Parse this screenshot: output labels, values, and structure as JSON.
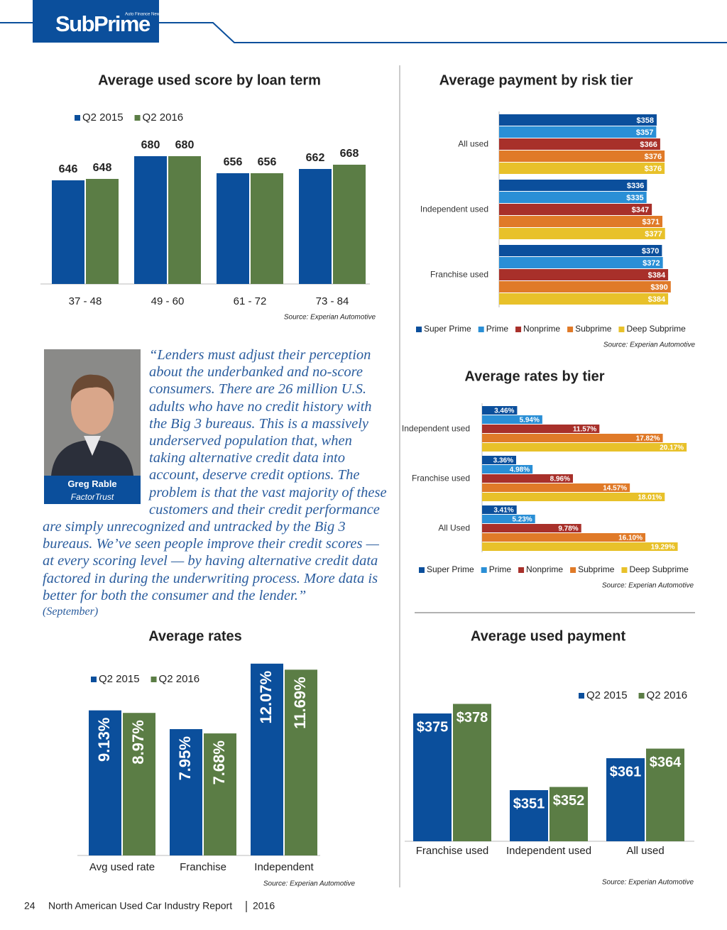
{
  "header": {
    "brand": "SubPrime",
    "tagline": "Auto Finance News"
  },
  "quote": {
    "text": "“Lenders must adjust their perception about the underbanked and no-score consumers. There are 26 million U.S. adults who have no credit history with the Big 3 bureaus. This is a massively underserved population that, when taking alternative credit data into account, deserve credit options. The problem is that the vast majority of these customers and their credit performance are simply unrecognized and untracked by the Big 3 bureaus. We’ve seen people improve their credit scores — at every scoring level — by having alternative credit data factored in during the underwriting process. More data is better for both the consumer and the lender.”",
    "name": "Greg Rable",
    "affiliation": "FactorTrust",
    "date": "(September)"
  },
  "footer": {
    "page": "24",
    "report": "North American Used Car Industry Report",
    "year": "2016"
  },
  "chart_data": [
    {
      "type": "bar",
      "title": "Average used score by loan term",
      "source": "Source: Experian Automotive",
      "legend": "top",
      "categories": [
        "37 - 48",
        "49 - 60",
        "61 - 72",
        "73 - 84"
      ],
      "ylim": [
        500,
        720
      ],
      "series": [
        {
          "name": "Q2 2015",
          "color": "#0b4f9c",
          "values": [
            646,
            680,
            656,
            662
          ]
        },
        {
          "name": "Q2 2016",
          "color": "#5b7d45",
          "values": [
            648,
            680,
            656,
            668
          ]
        }
      ]
    },
    {
      "type": "hbar",
      "title": "Average payment by risk tier",
      "source": "Source: Experian Automotive",
      "legend": "bottom",
      "categories": [
        "All used",
        "Independent used",
        "Franchise used"
      ],
      "xlim": [
        0,
        450
      ],
      "series": [
        {
          "name": "Super Prime",
          "color": "#0b4f9c",
          "values": [
            358,
            336,
            370
          ],
          "value_labels": [
            "$358",
            "$336",
            "$370"
          ]
        },
        {
          "name": "Prime",
          "color": "#2a8fd6",
          "values": [
            357,
            335,
            372
          ],
          "value_labels": [
            "$357",
            "$335",
            "$372"
          ]
        },
        {
          "name": "Nonprime",
          "color": "#a8302a",
          "values": [
            366,
            347,
            384
          ],
          "value_labels": [
            "$366",
            "$347",
            "$384"
          ]
        },
        {
          "name": "Subprime",
          "color": "#e07a28",
          "values": [
            376,
            371,
            390
          ],
          "value_labels": [
            "$376",
            "$371",
            "$390"
          ]
        },
        {
          "name": "Deep Subprime",
          "color": "#e8c12a",
          "values": [
            376,
            377,
            384
          ],
          "value_labels": [
            "$376",
            "$377",
            "$384"
          ]
        }
      ]
    },
    {
      "type": "hbar",
      "title": "Average rates by tier",
      "source": "Source: Experian Automotive",
      "legend": "bottom",
      "categories": [
        "Independent used",
        "Franchise used",
        "All Used"
      ],
      "xlim": [
        0,
        21
      ],
      "series": [
        {
          "name": "Super Prime",
          "color": "#0b4f9c",
          "values": [
            3.46,
            3.36,
            3.41
          ],
          "value_labels": [
            "3.46%",
            "3.36%",
            "3.41%"
          ]
        },
        {
          "name": "Prime",
          "color": "#2a8fd6",
          "values": [
            5.94,
            4.98,
            5.23
          ],
          "value_labels": [
            "5.94%",
            "4.98%",
            "5.23%"
          ]
        },
        {
          "name": "Nonprime",
          "color": "#a8302a",
          "values": [
            11.57,
            8.96,
            9.78
          ],
          "value_labels": [
            "11.57%",
            "8.96%",
            "9.78%"
          ]
        },
        {
          "name": "Subprime",
          "color": "#e07a28",
          "values": [
            17.82,
            14.57,
            16.1
          ],
          "value_labels": [
            "17.82%",
            "14.57%",
            "16.10%"
          ]
        },
        {
          "name": "Deep Subprime",
          "color": "#e8c12a",
          "values": [
            20.17,
            18.01,
            19.29
          ],
          "value_labels": [
            "20.17%",
            "18.01%",
            "19.29%"
          ]
        }
      ]
    },
    {
      "type": "bar",
      "title": "Average rates",
      "source": "Source: Experian Automotive",
      "legend": "top",
      "categories": [
        "Avg used rate",
        "Franchise",
        "Independent"
      ],
      "ylim": [
        0,
        13
      ],
      "series": [
        {
          "name": "Q2 2015",
          "color": "#0b4f9c",
          "values": [
            9.13,
            7.95,
            12.07
          ],
          "value_labels": [
            "9.13%",
            "7.95%",
            "12.07%"
          ]
        },
        {
          "name": "Q2 2016",
          "color": "#5b7d45",
          "values": [
            8.97,
            7.68,
            11.69
          ],
          "value_labels": [
            "8.97%",
            "7.68%",
            "11.69%"
          ]
        }
      ]
    },
    {
      "type": "bar",
      "title": "Average used payment",
      "source": "Source: Experian Automotive",
      "legend": "top right",
      "categories": [
        "Franchise used",
        "Independent used",
        "All used"
      ],
      "ylim": [
        335,
        385
      ],
      "series": [
        {
          "name": "Q2 2015",
          "color": "#0b4f9c",
          "values": [
            375,
            351,
            361
          ],
          "value_labels": [
            "$375",
            "$351",
            "$361"
          ]
        },
        {
          "name": "Q2 2016",
          "color": "#5b7d45",
          "values": [
            378,
            352,
            364
          ],
          "value_labels": [
            "$378",
            "$352",
            "$364"
          ]
        }
      ]
    }
  ]
}
